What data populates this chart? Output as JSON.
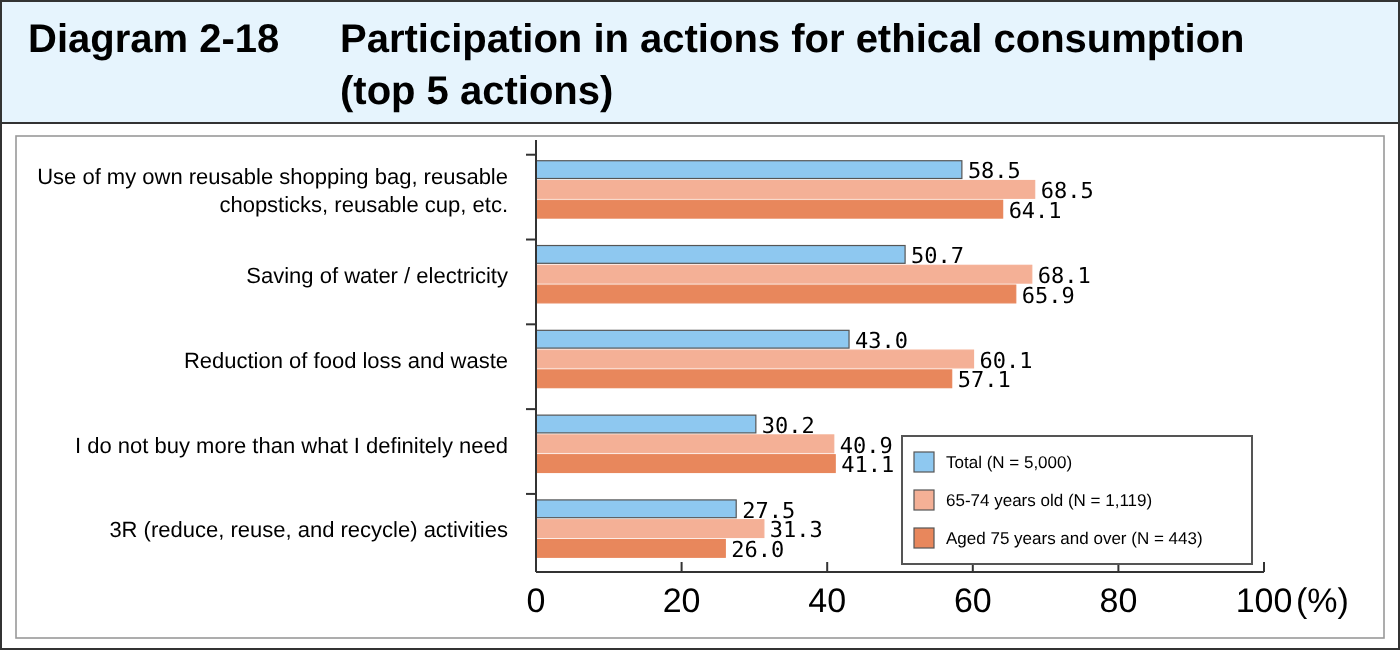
{
  "chart_data": {
    "type": "bar",
    "orientation": "horizontal",
    "title": "Diagram 2-18",
    "subtitle": "Participation in actions for ethical consumption (top 5 actions)",
    "categories": [
      "Use of my own reusable shopping bag, reusable chopsticks, reusable cup, etc.",
      "Saving of water / electricity",
      "Reduction of food loss and waste",
      "I do not buy more than what I definitely need",
      "3R (reduce, reuse, and recycle) activities"
    ],
    "series": [
      {
        "name": "Total (N = 5,000)",
        "color": "#8ec8f0",
        "values": [
          58.5,
          50.7,
          43.0,
          30.2,
          27.5
        ],
        "value_labels": [
          "58.5",
          "50.7",
          "43.0",
          "30.2",
          "27.5"
        ]
      },
      {
        "name": "65-74 years old (N = 1,119)",
        "color": "#f4b096",
        "values": [
          68.5,
          68.1,
          60.1,
          40.9,
          31.3
        ],
        "value_labels": [
          "68.5",
          "68.1",
          "60.1",
          "40.9",
          "31.3"
        ]
      },
      {
        "name": "Aged 75 years and over (N = 443)",
        "color": "#e8875c",
        "values": [
          64.1,
          65.9,
          57.1,
          41.1,
          26.0
        ],
        "value_labels": [
          "64.1",
          "65.9",
          "57.1",
          "41.1",
          "26.0"
        ]
      }
    ],
    "xlim": [
      0,
      100
    ],
    "xticks": [
      0,
      20,
      40,
      60,
      80,
      100
    ],
    "xlabel": "(%)",
    "legend": "bottom right",
    "grid": false
  }
}
